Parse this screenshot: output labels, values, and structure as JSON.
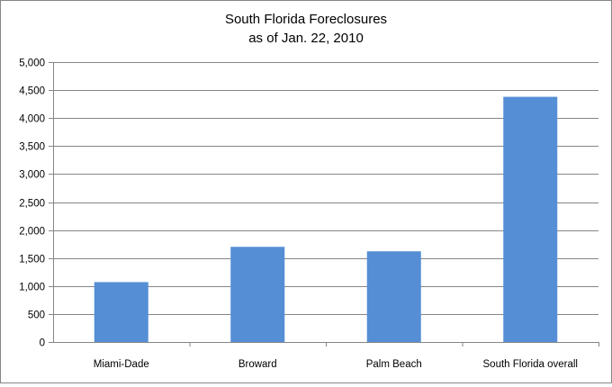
{
  "chart_data": {
    "type": "bar",
    "title": [
      "South Florida Foreclosures",
      "as of Jan. 22, 2010"
    ],
    "categories": [
      "Miami-Dade",
      "Broward",
      "Palm Beach",
      "South Florida overall"
    ],
    "values": [
      1070,
      1700,
      1620,
      4380
    ],
    "ylim": [
      0,
      5000
    ],
    "y_ticks": [
      0,
      500,
      1000,
      1500,
      2000,
      2500,
      3000,
      3500,
      4000,
      4500,
      5000
    ],
    "y_tick_labels": [
      "0",
      "500",
      "1,000",
      "1,500",
      "2,000",
      "2,500",
      "3,000",
      "3,500",
      "4,000",
      "4,500",
      "5,000"
    ],
    "grid": true,
    "legend": "none",
    "colors": {
      "bar": "#558ED5",
      "grid": "#868686",
      "axis": "#868686",
      "border": "#868686"
    }
  }
}
